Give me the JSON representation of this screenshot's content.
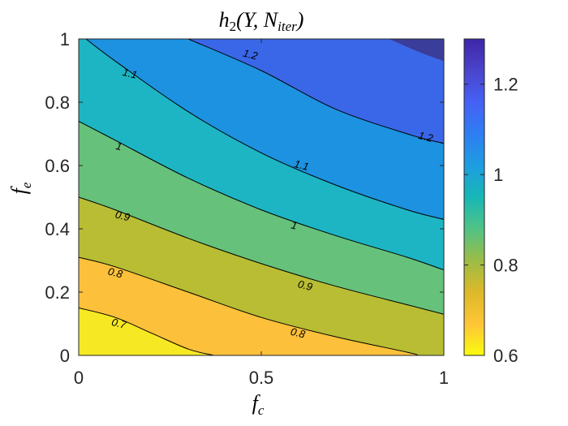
{
  "chart_data": {
    "type": "contour",
    "title": "h",
    "title_sub": "2",
    "title_args": "(Y, N",
    "title_args_sub": "iter",
    "title_close": ")",
    "xlabel": "f",
    "xlabel_sub": "c",
    "ylabel": "f",
    "ylabel_sub": "e",
    "xlim": [
      0,
      1
    ],
    "ylim": [
      0,
      1
    ],
    "x_ticks": [
      0,
      0.5,
      1
    ],
    "x_tick_labels": [
      "0",
      "0.5",
      "1"
    ],
    "y_ticks": [
      0,
      0.2,
      0.4,
      0.6,
      0.8,
      1
    ],
    "y_tick_labels": [
      "0",
      "0.2",
      "0.4",
      "0.6",
      "0.8",
      "1"
    ],
    "colorbar": {
      "range": [
        0.6,
        1.3
      ],
      "ticks": [
        0.6,
        0.8,
        1,
        1.2
      ],
      "tick_labels": [
        "0.6",
        "0.8",
        "1",
        "1.2"
      ],
      "colormap": "parula"
    },
    "levels": [
      0.7,
      0.8,
      0.9,
      1.0,
      1.1,
      1.2
    ],
    "level_labels": [
      "0.7",
      "0.8",
      "0.9",
      "1",
      "1.1",
      "1.2"
    ],
    "contour_lines": [
      {
        "level": 0.7,
        "label": "0.7",
        "points": [
          [
            0,
            0.15
          ],
          [
            0.1,
            0.12
          ],
          [
            0.2,
            0.07
          ],
          [
            0.3,
            0.02
          ],
          [
            0.37,
            0
          ]
        ]
      },
      {
        "level": 0.8,
        "label": "0.8",
        "points": [
          [
            0,
            0.31
          ],
          [
            0.1,
            0.28
          ],
          [
            0.3,
            0.2
          ],
          [
            0.5,
            0.12
          ],
          [
            0.7,
            0.06
          ],
          [
            0.9,
            0.01
          ],
          [
            0.93,
            0
          ]
        ]
      },
      {
        "level": 0.9,
        "label": "0.9",
        "points": [
          [
            0,
            0.5
          ],
          [
            0.1,
            0.46
          ],
          [
            0.3,
            0.37
          ],
          [
            0.5,
            0.29
          ],
          [
            0.7,
            0.22
          ],
          [
            0.9,
            0.16
          ],
          [
            1,
            0.13
          ]
        ]
      },
      {
        "level": 1.0,
        "label": "1",
        "points": [
          [
            0,
            0.74
          ],
          [
            0.1,
            0.68
          ],
          [
            0.3,
            0.56
          ],
          [
            0.5,
            0.46
          ],
          [
            0.7,
            0.38
          ],
          [
            0.9,
            0.31
          ],
          [
            1,
            0.27
          ]
        ]
      },
      {
        "level": 1.1,
        "label": "1.1",
        "points": [
          [
            0.02,
            1
          ],
          [
            0.1,
            0.93
          ],
          [
            0.3,
            0.77
          ],
          [
            0.5,
            0.64
          ],
          [
            0.7,
            0.54
          ],
          [
            0.9,
            0.46
          ],
          [
            1,
            0.43
          ]
        ]
      },
      {
        "level": 1.2,
        "label": "1.2",
        "points": [
          [
            0.3,
            1
          ],
          [
            0.5,
            0.9
          ],
          [
            0.7,
            0.78
          ],
          [
            0.9,
            0.7
          ],
          [
            1,
            0.67
          ]
        ]
      }
    ],
    "label_positions": [
      {
        "label": "0.7",
        "x": 0.11,
        "y": 0.1
      },
      {
        "label": "0.8",
        "x": 0.1,
        "y": 0.26
      },
      {
        "label": "0.8",
        "x": 0.6,
        "y": 0.07
      },
      {
        "label": "0.9",
        "x": 0.12,
        "y": 0.44
      },
      {
        "label": "0.9",
        "x": 0.62,
        "y": 0.22
      },
      {
        "label": "1",
        "x": 0.11,
        "y": 0.66
      },
      {
        "label": "1",
        "x": 0.59,
        "y": 0.41
      },
      {
        "label": "1.1",
        "x": 0.14,
        "y": 0.89
      },
      {
        "label": "1.1",
        "x": 0.61,
        "y": 0.6
      },
      {
        "label": "1.2",
        "x": 0.47,
        "y": 0.95
      },
      {
        "label": "1.2",
        "x": 0.95,
        "y": 0.69
      }
    ],
    "fill_colors": {
      "0.6-0.7": "#f7e824",
      "0.7-0.8": "#fcc03a",
      "0.8-0.9": "#b8bd33",
      "0.9-1.0": "#66c17a",
      "1.0-1.1": "#1db5c4",
      "1.1-1.2": "#1c92e0",
      "1.2-1.3": "#3a67e8",
      "1.3+": "#3b3d9a"
    },
    "colormap_stops": [
      "#f9fb0e",
      "#fec537",
      "#dcb929",
      "#9cbc46",
      "#50c386",
      "#17b7b6",
      "#1e9de0",
      "#2e7ef2",
      "#4561f5",
      "#4b44cc",
      "#3e26a8"
    ]
  }
}
